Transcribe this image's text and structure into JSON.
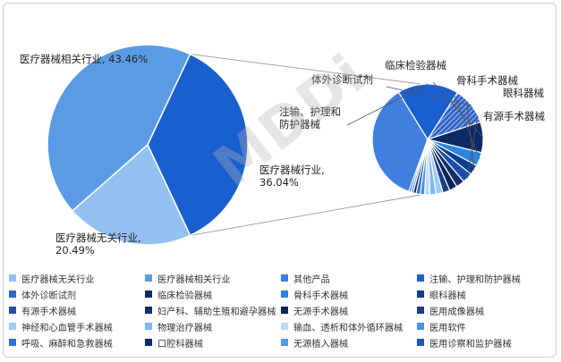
{
  "chart_data": {
    "type": "pie",
    "title": "",
    "main_pie": {
      "slices": [
        {
          "name": "医疗器械相关行业",
          "label": "医疗器械相关行业, 43.46%",
          "value": 43.46,
          "color": "#5b9be6"
        },
        {
          "name": "医疗器械行业",
          "label": "医疗器械行业, 36.04%",
          "value": 36.04,
          "color": "#1a5fd0"
        },
        {
          "name": "医疗器械无关行业",
          "label": "医疗器械无关行业, 20.49%",
          "value": 20.49,
          "color": "#93c2f2"
        }
      ]
    },
    "sub_pie": {
      "slices": [
        {
          "name": "其他产品",
          "value": 36.0,
          "color": "#3f7fe0"
        },
        {
          "name": "注输、护理和防护器械",
          "value": 18.0,
          "color": "#1a5fd0",
          "label": "注输、护理和\n防护器械"
        },
        {
          "name": "体外诊断试剂",
          "value": 11.0,
          "color": "#2e63c8",
          "hatched": true,
          "label": "体外诊断试剂"
        },
        {
          "name": "临床检验器械",
          "value": 9.0,
          "color": "#0c2a66",
          "label": "临床检验器械"
        },
        {
          "name": "骨科手术器械",
          "value": 4.0,
          "color": "#2a84e0",
          "label": "骨科手术器械"
        },
        {
          "name": "眼科器械",
          "value": 3.0,
          "color": "#0e3f8f",
          "label": "眼科器械"
        },
        {
          "name": "有源手术器械",
          "value": 3.0,
          "color": "#1d4fa8",
          "label": "有源手术器械"
        },
        {
          "name": "妇产科、辅助生殖和避孕器械",
          "value": 2.5,
          "color": "#12306b"
        },
        {
          "name": "无源手术器械",
          "value": 2.3,
          "color": "#0b2557"
        },
        {
          "name": "医用成像器械",
          "value": 2.1,
          "color": "#173e86"
        },
        {
          "name": "神经和心血管手术器械",
          "value": 2.0,
          "color": "#9ccbf3"
        },
        {
          "name": "物理治疗器械",
          "value": 1.8,
          "color": "#7fb8ee"
        },
        {
          "name": "输血、透析和体外循环器械",
          "value": 1.6,
          "color": "#b9dbf7"
        },
        {
          "name": "医用软件",
          "value": 1.3,
          "color": "#4b8fe6"
        },
        {
          "name": "呼吸、麻醉和急救器械",
          "value": 1.2,
          "color": "#2f6fd6"
        },
        {
          "name": "口腔科器械",
          "value": 0.9,
          "color": "#0a2b6e"
        },
        {
          "name": "无源植入器械",
          "value": 0.7,
          "color": "#4e97ea"
        },
        {
          "name": "医用诊察和监护器械",
          "value": 0.6,
          "color": "#1c56b8"
        }
      ]
    },
    "legend": [
      {
        "label": "医疗器械无关行业",
        "color": "#93c2f2"
      },
      {
        "label": "医疗器械相关行业",
        "color": "#5b9be6"
      },
      {
        "label": "其他产品",
        "color": "#3f7fe0"
      },
      {
        "label": "注输、护理和防护器械",
        "color": "#1a5fd0"
      },
      {
        "label": "体外诊断试剂",
        "color": "#2e63c8"
      },
      {
        "label": "临床检验器械",
        "color": "#0c2a66"
      },
      {
        "label": "骨科手术器械",
        "color": "#2a84e0"
      },
      {
        "label": "眼科器械",
        "color": "#0e3f8f"
      },
      {
        "label": "有源手术器械",
        "color": "#1d4fa8"
      },
      {
        "label": "妇产科、辅助生殖和避孕器械",
        "color": "#12306b"
      },
      {
        "label": "无源手术器械",
        "color": "#0b2557"
      },
      {
        "label": "医用成像器械",
        "color": "#173e86"
      },
      {
        "label": "神经和心血管手术器械",
        "color": "#9ccbf3"
      },
      {
        "label": "物理治疗器械",
        "color": "#7fb8ee"
      },
      {
        "label": "输血、透析和体外循环器械",
        "color": "#b9dbf7"
      },
      {
        "label": "医用软件",
        "color": "#4b8fe6"
      },
      {
        "label": "呼吸、麻醉和急救器械",
        "color": "#2f6fd6"
      },
      {
        "label": "口腔科器械",
        "color": "#0a2b6e"
      },
      {
        "label": "无源植入器械",
        "color": "#4e97ea"
      },
      {
        "label": "医用诊察和监护器械",
        "color": "#1c56b8"
      }
    ],
    "watermark": "MDDi"
  }
}
